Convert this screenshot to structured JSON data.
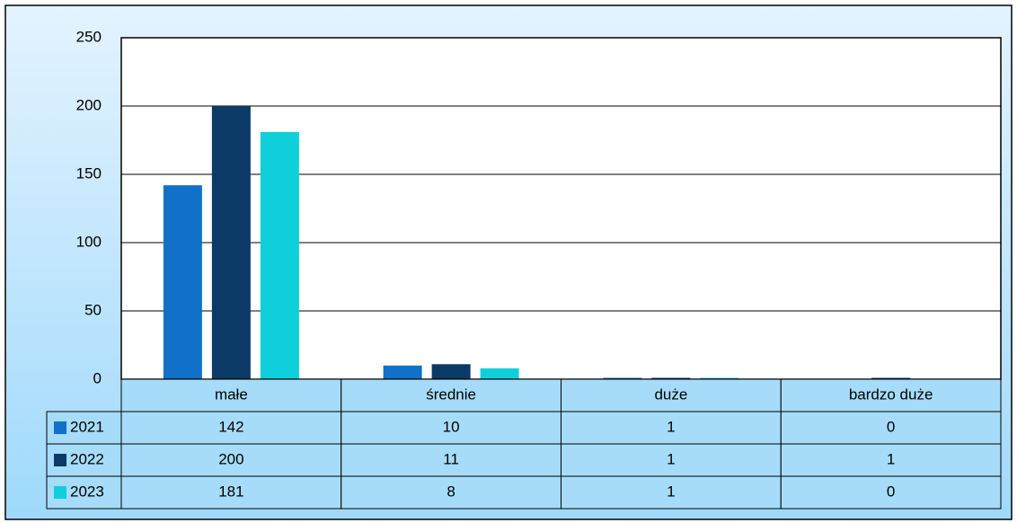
{
  "chart_data": {
    "type": "bar",
    "categories": [
      "małe",
      "średnie",
      "duże",
      "bardzo duże"
    ],
    "series": [
      {
        "name": "2021",
        "color": "#1170c8",
        "values": [
          142,
          10,
          1,
          0
        ]
      },
      {
        "name": "2022",
        "color": "#0b3a66",
        "values": [
          200,
          11,
          1,
          1
        ]
      },
      {
        "name": "2023",
        "color": "#0fd0da",
        "values": [
          181,
          8,
          1,
          0
        ]
      }
    ],
    "ylim": [
      0,
      250
    ],
    "yticks": [
      0,
      50,
      100,
      150,
      200,
      250
    ],
    "grid": true
  }
}
